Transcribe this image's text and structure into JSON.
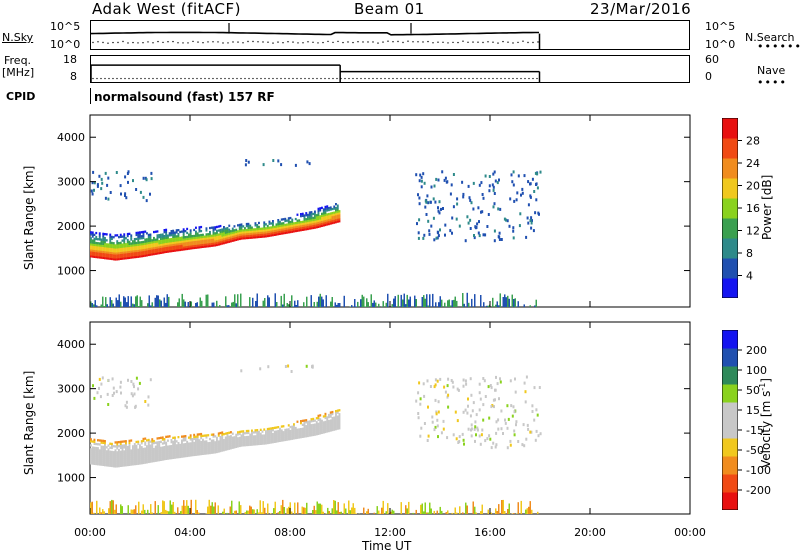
{
  "header": {
    "radar": "Adak West (fitACF)",
    "beam": "Beam 01",
    "date": "23/Mar/2016"
  },
  "nsky_panel": {
    "left_label": "N.Sky",
    "left_ticks": [
      "10^5",
      "10^0"
    ],
    "right_label": "N.Search",
    "right_ticks": [
      "10^5",
      "10^0"
    ]
  },
  "freq_panel": {
    "left_label_line1": "Freq.",
    "left_label_line2": "[MHz]",
    "left_ticks": [
      "18",
      "8"
    ],
    "right_label": "Nave",
    "right_ticks": [
      "60",
      "0"
    ]
  },
  "cpid": {
    "label": "CPID",
    "value": "normalsound (fast) 157 RF"
  },
  "time_axis": {
    "label": "Time UT",
    "ticks": [
      "00:00",
      "04:00",
      "08:00",
      "12:00",
      "16:00",
      "20:00",
      "00:00"
    ]
  },
  "colors": {
    "power_scale": [
      "#1414f0",
      "#2050b0",
      "#2e8a8a",
      "#3aa050",
      "#8ad21e",
      "#f0c81e",
      "#f08c1e",
      "#f04a14",
      "#e81010"
    ],
    "velocity_scale": [
      "#e81010",
      "#f04a14",
      "#f08c1e",
      "#f0c81e",
      "#c8c8c8",
      "#c8c8c8",
      "#8ad21e",
      "#2e8a5a",
      "#2050b0",
      "#1414f0"
    ]
  },
  "chart_data": [
    {
      "type": "heatmap",
      "title": "",
      "xlabel": "",
      "ylabel": "Slant Range [km]",
      "xlim": [
        0,
        24
      ],
      "ylim": [
        180,
        4500
      ],
      "yticks": [
        "1000",
        "2000",
        "3000",
        "4000"
      ],
      "colorbar_label": "Power [dB]",
      "colorbar_ticks": [
        "4",
        "8",
        "12",
        "16",
        "20",
        "24",
        "28"
      ],
      "colorbar_range": [
        0,
        30
      ],
      "features": [
        {
          "kind": "band",
          "t_start": 0.0,
          "t_end": 10.0,
          "lower_km": [
            1300,
            1230,
            1300,
            1400,
            1480,
            1550,
            1700,
            1750,
            1850,
            1950,
            2100
          ],
          "upper_km": [
            1850,
            1800,
            1850,
            1900,
            1950,
            1980,
            2050,
            2100,
            2200,
            2350,
            2550
          ],
          "peak_db": 28
        },
        {
          "kind": "scatter_patch",
          "t_start": 0.0,
          "t_end": 2.5,
          "range_km": [
            2600,
            3300
          ],
          "db": 6
        },
        {
          "kind": "scatter_patch",
          "t_start": 6.0,
          "t_end": 9.0,
          "range_km": [
            3400,
            3550
          ],
          "db": 6
        },
        {
          "kind": "scatter_patch",
          "t_start": 13.0,
          "t_end": 18.0,
          "range_km": [
            1700,
            3300
          ],
          "db": 6
        },
        {
          "kind": "ground_noise",
          "t_start": 0.0,
          "t_end": 18.0,
          "range_km": [
            180,
            500
          ],
          "db": 8
        }
      ]
    },
    {
      "type": "heatmap",
      "title": "",
      "xlabel": "Time UT",
      "ylabel": "Slant Range [km]",
      "xlim": [
        0,
        24
      ],
      "ylim": [
        180,
        4500
      ],
      "yticks": [
        "1000",
        "2000",
        "3000",
        "4000"
      ],
      "colorbar_label": "Velocity [m s^-1]",
      "colorbar_ticks": [
        "200",
        "100",
        "50",
        "15",
        "-15",
        "-50",
        "-100",
        "-200"
      ],
      "colorbar_range": [
        -250,
        250
      ],
      "features": [
        {
          "kind": "band",
          "t_start": 0.0,
          "t_end": 10.0,
          "lower_km": [
            1300,
            1230,
            1300,
            1400,
            1480,
            1550,
            1700,
            1750,
            1850,
            1950,
            2100
          ],
          "upper_km": [
            1850,
            1800,
            1850,
            1900,
            1950,
            1980,
            2050,
            2100,
            2200,
            2350,
            2550
          ],
          "velocity": 0
        },
        {
          "kind": "scatter_patch",
          "t_start": 0.0,
          "t_end": 2.5,
          "range_km": [
            2600,
            3300
          ],
          "velocity": 0
        },
        {
          "kind": "scatter_patch",
          "t_start": 6.0,
          "t_end": 9.0,
          "range_km": [
            3400,
            3550
          ],
          "velocity": 0
        },
        {
          "kind": "scatter_patch",
          "t_start": 13.0,
          "t_end": 18.0,
          "range_km": [
            1700,
            3300
          ],
          "velocity": 0
        },
        {
          "kind": "ground_noise",
          "t_start": 0.0,
          "t_end": 18.0,
          "range_km": [
            180,
            500
          ],
          "velocity": -50
        }
      ]
    }
  ],
  "time_series": {
    "nsky_level": 0.55,
    "nsearch_level": 0.35,
    "freq_mhz": [
      {
        "t_start": 0.0,
        "t_end": 10.0,
        "value": 14.5
      },
      {
        "t_start": 10.0,
        "t_end": 18.0,
        "value": 12.0
      }
    ],
    "nave": [
      {
        "t_start": 0.0,
        "t_end": 18.0,
        "value": 8
      }
    ],
    "data_end_hour": 18.0
  }
}
